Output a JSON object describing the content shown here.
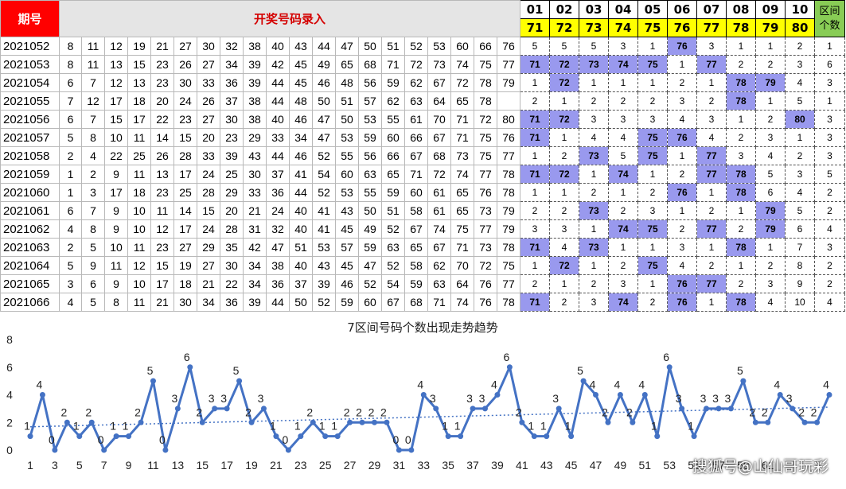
{
  "header": {
    "period_label": "期号",
    "title": "开奖号码录入",
    "zones": [
      "01",
      "02",
      "03",
      "04",
      "05",
      "06",
      "07",
      "08",
      "09",
      "10"
    ],
    "bases": [
      "71",
      "72",
      "73",
      "74",
      "75",
      "76",
      "77",
      "78",
      "79",
      "80"
    ],
    "count_label_1": "区间",
    "count_label_2": "个数"
  },
  "rows": [
    {
      "period": "2021052",
      "nums": [
        "8",
        "11",
        "12",
        "19",
        "21",
        "27",
        "30",
        "32",
        "38",
        "40",
        "43",
        "44",
        "47",
        "50",
        "51",
        "52",
        "53",
        "60",
        "66",
        "76"
      ],
      "zones": [
        "5",
        "5",
        "5",
        "3",
        "1",
        "76",
        "3",
        "1",
        "1",
        "2"
      ],
      "hits": [
        5
      ],
      "count": "1"
    },
    {
      "period": "2021053",
      "nums": [
        "8",
        "11",
        "13",
        "15",
        "23",
        "26",
        "27",
        "34",
        "39",
        "42",
        "45",
        "49",
        "65",
        "68",
        "71",
        "72",
        "73",
        "74",
        "75",
        "77"
      ],
      "zones": [
        "71",
        "72",
        "73",
        "74",
        "75",
        "1",
        "77",
        "2",
        "2",
        "3"
      ],
      "hits": [
        0,
        1,
        2,
        3,
        4,
        6
      ],
      "count": "6"
    },
    {
      "period": "2021054",
      "nums": [
        "6",
        "7",
        "12",
        "13",
        "23",
        "30",
        "33",
        "36",
        "39",
        "44",
        "45",
        "46",
        "48",
        "56",
        "59",
        "62",
        "67",
        "72",
        "78",
        "79"
      ],
      "zones": [
        "1",
        "72",
        "1",
        "1",
        "1",
        "2",
        "1",
        "78",
        "79",
        "4"
      ],
      "hits": [
        1,
        7,
        8
      ],
      "count": "3"
    },
    {
      "period": "2021055",
      "nums": [
        "7",
        "12",
        "17",
        "18",
        "20",
        "24",
        "26",
        "37",
        "38",
        "44",
        "48",
        "50",
        "51",
        "57",
        "62",
        "63",
        "64",
        "65",
        "78"
      ],
      "zones": [
        "2",
        "1",
        "2",
        "2",
        "2",
        "3",
        "2",
        "78",
        "1",
        "5"
      ],
      "hits": [
        7
      ],
      "count": "1"
    },
    {
      "period": "2021056",
      "nums": [
        "6",
        "7",
        "15",
        "17",
        "22",
        "23",
        "27",
        "30",
        "38",
        "40",
        "46",
        "47",
        "50",
        "53",
        "55",
        "61",
        "70",
        "71",
        "72",
        "80"
      ],
      "zones": [
        "71",
        "72",
        "3",
        "3",
        "3",
        "4",
        "3",
        "1",
        "2",
        "80"
      ],
      "hits": [
        0,
        1,
        9
      ],
      "count": "3"
    },
    {
      "period": "2021057",
      "nums": [
        "5",
        "8",
        "10",
        "11",
        "14",
        "15",
        "20",
        "23",
        "29",
        "33",
        "34",
        "47",
        "53",
        "59",
        "60",
        "66",
        "67",
        "71",
        "75",
        "76"
      ],
      "zones": [
        "71",
        "1",
        "4",
        "4",
        "75",
        "76",
        "4",
        "2",
        "3",
        "1"
      ],
      "hits": [
        0,
        4,
        5
      ],
      "count": "3"
    },
    {
      "period": "2021058",
      "nums": [
        "2",
        "4",
        "22",
        "25",
        "26",
        "28",
        "33",
        "39",
        "43",
        "44",
        "46",
        "52",
        "55",
        "56",
        "66",
        "67",
        "68",
        "73",
        "75",
        "77"
      ],
      "zones": [
        "1",
        "2",
        "73",
        "5",
        "75",
        "1",
        "77",
        "3",
        "4",
        "2"
      ],
      "hits": [
        2,
        4,
        6
      ],
      "count": "3"
    },
    {
      "period": "2021059",
      "nums": [
        "1",
        "2",
        "9",
        "11",
        "13",
        "17",
        "24",
        "25",
        "30",
        "37",
        "41",
        "54",
        "60",
        "63",
        "65",
        "71",
        "72",
        "74",
        "77",
        "78"
      ],
      "zones": [
        "71",
        "72",
        "1",
        "74",
        "1",
        "2",
        "77",
        "78",
        "5",
        "3"
      ],
      "hits": [
        0,
        1,
        3,
        6,
        7
      ],
      "count": "5"
    },
    {
      "period": "2021060",
      "nums": [
        "1",
        "3",
        "17",
        "18",
        "23",
        "25",
        "28",
        "29",
        "33",
        "36",
        "44",
        "52",
        "53",
        "55",
        "59",
        "60",
        "61",
        "65",
        "76",
        "78"
      ],
      "zones": [
        "1",
        "1",
        "2",
        "1",
        "2",
        "76",
        "1",
        "78",
        "6",
        "4"
      ],
      "hits": [
        5,
        7
      ],
      "count": "2"
    },
    {
      "period": "2021061",
      "nums": [
        "6",
        "7",
        "9",
        "10",
        "11",
        "14",
        "15",
        "20",
        "21",
        "24",
        "40",
        "41",
        "43",
        "50",
        "51",
        "58",
        "61",
        "65",
        "73",
        "79"
      ],
      "zones": [
        "2",
        "2",
        "73",
        "2",
        "3",
        "1",
        "2",
        "1",
        "79",
        "5"
      ],
      "hits": [
        2,
        8
      ],
      "count": "2"
    },
    {
      "period": "2021062",
      "nums": [
        "4",
        "8",
        "9",
        "10",
        "12",
        "17",
        "24",
        "28",
        "31",
        "32",
        "40",
        "41",
        "45",
        "49",
        "52",
        "67",
        "74",
        "75",
        "77",
        "79"
      ],
      "zones": [
        "3",
        "3",
        "1",
        "74",
        "75",
        "2",
        "77",
        "2",
        "79",
        "6"
      ],
      "hits": [
        3,
        4,
        6,
        8
      ],
      "count": "4"
    },
    {
      "period": "2021063",
      "nums": [
        "2",
        "5",
        "10",
        "11",
        "23",
        "27",
        "29",
        "35",
        "42",
        "47",
        "51",
        "53",
        "57",
        "59",
        "63",
        "65",
        "67",
        "71",
        "73",
        "78"
      ],
      "zones": [
        "71",
        "4",
        "73",
        "1",
        "1",
        "3",
        "1",
        "78",
        "1",
        "7"
      ],
      "hits": [
        0,
        2,
        7
      ],
      "count": "3"
    },
    {
      "period": "2021064",
      "nums": [
        "5",
        "9",
        "11",
        "12",
        "15",
        "19",
        "27",
        "30",
        "34",
        "38",
        "40",
        "43",
        "45",
        "47",
        "52",
        "58",
        "62",
        "70",
        "72",
        "75"
      ],
      "zones": [
        "1",
        "72",
        "1",
        "2",
        "75",
        "4",
        "2",
        "1",
        "2",
        "8"
      ],
      "hits": [
        1,
        4
      ],
      "count": "2"
    },
    {
      "period": "2021065",
      "nums": [
        "3",
        "6",
        "9",
        "10",
        "17",
        "18",
        "21",
        "22",
        "34",
        "36",
        "37",
        "39",
        "46",
        "52",
        "54",
        "59",
        "63",
        "64",
        "76",
        "77"
      ],
      "zones": [
        "2",
        "1",
        "2",
        "3",
        "1",
        "76",
        "77",
        "2",
        "3",
        "9"
      ],
      "hits": [
        5,
        6
      ],
      "count": "2"
    },
    {
      "period": "2021066",
      "nums": [
        "4",
        "5",
        "8",
        "11",
        "21",
        "30",
        "34",
        "36",
        "39",
        "44",
        "50",
        "52",
        "59",
        "60",
        "67",
        "68",
        "71",
        "74",
        "76",
        "78"
      ],
      "zones": [
        "71",
        "2",
        "3",
        "74",
        "2",
        "76",
        "1",
        "78",
        "4",
        "10"
      ],
      "hits": [
        0,
        3,
        5,
        7
      ],
      "count": "4"
    }
  ],
  "colors": {
    "hit": "#9999ee",
    "period_header": "#ff0000",
    "base_row": "#ffff00",
    "count_header": "#88cc55",
    "line": "#4472c4"
  },
  "chart_data": {
    "type": "line",
    "title": "7区间号码个数出现走势趋势",
    "x_tick_labels": [
      "1",
      "3",
      "5",
      "7",
      "9",
      "11",
      "13",
      "15",
      "17",
      "19",
      "21",
      "23",
      "25",
      "27",
      "29",
      "31",
      "33",
      "35",
      "37",
      "39",
      "41",
      "43",
      "45",
      "47",
      "49",
      "51",
      "53",
      "55",
      "57",
      "59",
      "61"
    ],
    "y_tick_labels": [
      "0",
      "2",
      "4",
      "6",
      "8"
    ],
    "ylim": [
      0,
      8
    ],
    "grid": false,
    "trendline": "linear, dotted",
    "series": [
      {
        "values": [
          1,
          4,
          0,
          2,
          1,
          2,
          0,
          1,
          1,
          2,
          5,
          0,
          3,
          6,
          2,
          3,
          3,
          5,
          2,
          3,
          1,
          0,
          1,
          2,
          1,
          1,
          2,
          2,
          2,
          2,
          0,
          0,
          4,
          3,
          1,
          1,
          3,
          3,
          4,
          6,
          2,
          1,
          1,
          3,
          1,
          5,
          4,
          2,
          4,
          2,
          4,
          1,
          6,
          3,
          1,
          3,
          3,
          3,
          5,
          2,
          2,
          4,
          3,
          2,
          2,
          4
        ]
      }
    ]
  },
  "watermark": "搜狐号@山仙哥玩彩"
}
